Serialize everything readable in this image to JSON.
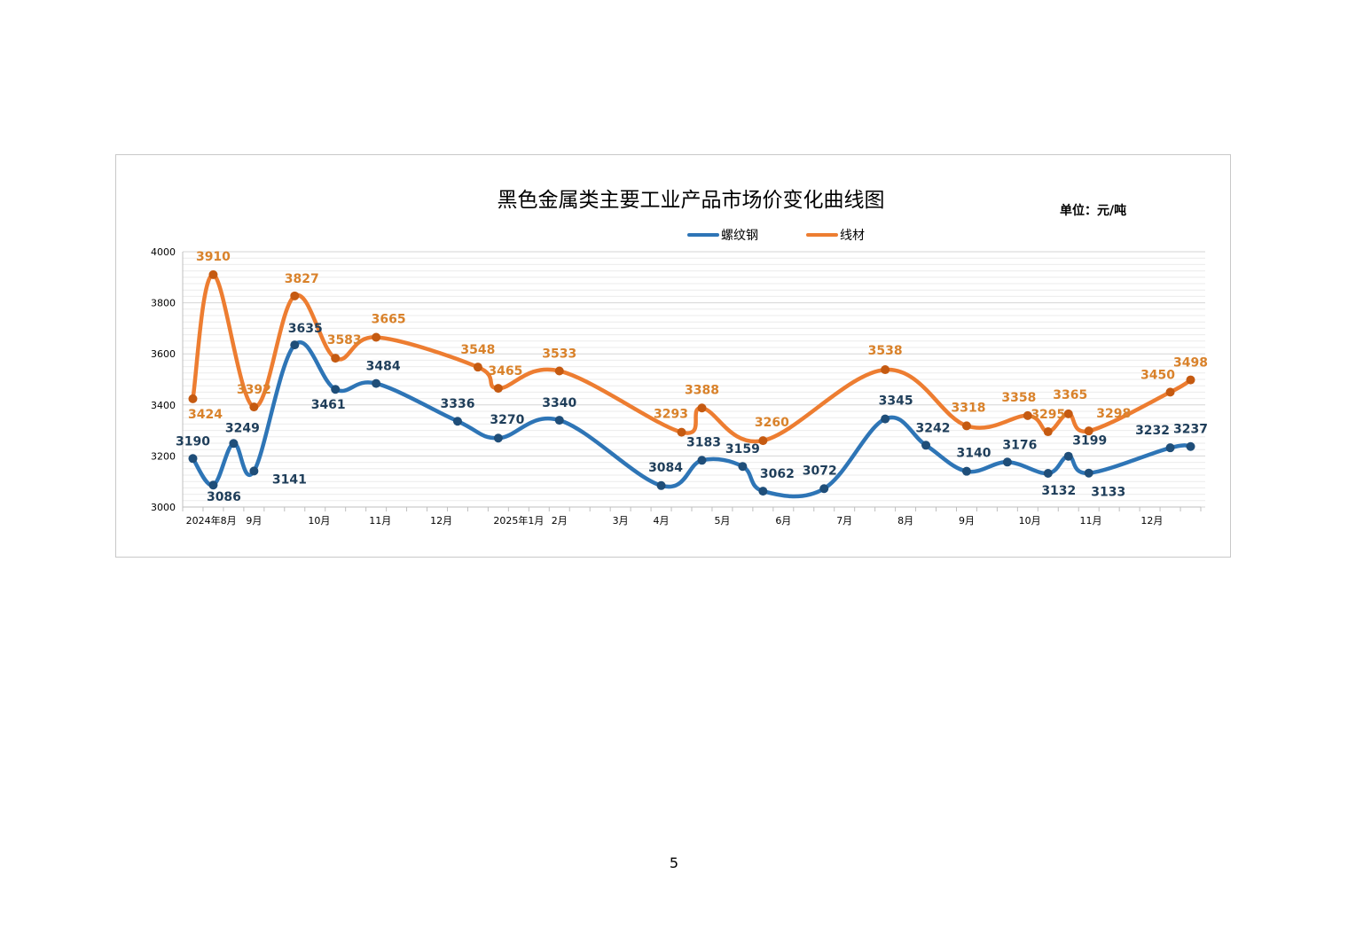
{
  "page_number": "5",
  "chart_data": {
    "type": "line",
    "title": "黑色金属类主要工业产品市场价变化曲线图",
    "unit_note": "单位：元/吨",
    "ylim": [
      3000,
      4000
    ],
    "y_ticks": [
      3000,
      3200,
      3400,
      3600,
      3800,
      4000
    ],
    "y_tick_labels": [
      "3000",
      "3200",
      "3400",
      "3600",
      "3800",
      "4000"
    ],
    "x_tick_labels": [
      "2024年8月",
      "9月",
      "10月",
      "11月",
      "12月",
      "2025年1月",
      "2月",
      "3月",
      "4月",
      "5月",
      "6月",
      "7月",
      "8月",
      "9月",
      "10月",
      "11月",
      "12月"
    ],
    "grid": true,
    "legend_position": "top-center",
    "colors": {
      "rebar": "#2e75b6",
      "rebar_marker": "#1f4e79",
      "rebar_label": "#1f3e5a",
      "wire": "#ed7d31",
      "wire_marker": "#c55a11",
      "wire_label": "#d9822b"
    },
    "series": [
      {
        "name": "螺纹钢",
        "points": [
          {
            "x": 0.5,
            "y": 3190
          },
          {
            "x": 1.5,
            "y": 3086
          },
          {
            "x": 2.5,
            "y": 3249
          },
          {
            "x": 3.5,
            "y": 3141
          },
          {
            "x": 5.5,
            "y": 3635
          },
          {
            "x": 7.5,
            "y": 3461
          },
          {
            "x": 9.5,
            "y": 3484
          },
          {
            "x": 13.5,
            "y": 3336
          },
          {
            "x": 15.5,
            "y": 3270
          },
          {
            "x": 18.5,
            "y": 3340
          },
          {
            "x": 23.5,
            "y": 3084
          },
          {
            "x": 25.5,
            "y": 3183
          },
          {
            "x": 27.5,
            "y": 3159
          },
          {
            "x": 28.5,
            "y": 3062
          },
          {
            "x": 31.5,
            "y": 3072
          },
          {
            "x": 34.5,
            "y": 3345
          },
          {
            "x": 36.5,
            "y": 3242
          },
          {
            "x": 38.5,
            "y": 3140
          },
          {
            "x": 40.5,
            "y": 3176
          },
          {
            "x": 42.5,
            "y": 3132
          },
          {
            "x": 43.5,
            "y": 3199
          },
          {
            "x": 44.5,
            "y": 3133
          },
          {
            "x": 48.5,
            "y": 3232
          },
          {
            "x": 49.5,
            "y": 3237
          }
        ],
        "labels": [
          {
            "x": 0.5,
            "y": 3190,
            "text": "3190"
          },
          {
            "x": 1.5,
            "y": 3086,
            "text": "3086"
          },
          {
            "x": 2.5,
            "y": 3249,
            "text": "3249"
          },
          {
            "x": 3.5,
            "y": 3141,
            "text": "3141"
          },
          {
            "x": 5.5,
            "y": 3635,
            "text": "3635"
          },
          {
            "x": 7.5,
            "y": 3461,
            "text": "3461"
          },
          {
            "x": 9.5,
            "y": 3484,
            "text": "3484"
          },
          {
            "x": 13.5,
            "y": 3336,
            "text": "3336"
          },
          {
            "x": 15.5,
            "y": 3270,
            "text": "3270"
          },
          {
            "x": 18.5,
            "y": 3340,
            "text": "3340"
          },
          {
            "x": 23.5,
            "y": 3084,
            "text": "3084"
          },
          {
            "x": 25.5,
            "y": 3183,
            "text": "3183"
          },
          {
            "x": 27.5,
            "y": 3159,
            "text": "3159"
          },
          {
            "x": 28.5,
            "y": 3062,
            "text": "3062"
          },
          {
            "x": 31.5,
            "y": 3072,
            "text": "3072"
          },
          {
            "x": 34.5,
            "y": 3345,
            "text": "3345"
          },
          {
            "x": 36.5,
            "y": 3242,
            "text": "3242"
          },
          {
            "x": 38.5,
            "y": 3140,
            "text": "3140"
          },
          {
            "x": 40.5,
            "y": 3176,
            "text": "3176"
          },
          {
            "x": 42.5,
            "y": 3132,
            "text": "3132"
          },
          {
            "x": 43.5,
            "y": 3199,
            "text": "3199"
          },
          {
            "x": 44.5,
            "y": 3133,
            "text": "3133"
          },
          {
            "x": 48.5,
            "y": 3232,
            "text": "3232"
          },
          {
            "x": 49.5,
            "y": 3237,
            "text": "3237"
          }
        ]
      },
      {
        "name": "线材",
        "points": [
          {
            "x": 0.5,
            "y": 3424
          },
          {
            "x": 1.5,
            "y": 3910
          },
          {
            "x": 3.5,
            "y": 3392
          },
          {
            "x": 5.5,
            "y": 3827
          },
          {
            "x": 7.5,
            "y": 3583
          },
          {
            "x": 9.5,
            "y": 3665
          },
          {
            "x": 14.5,
            "y": 3548
          },
          {
            "x": 15.5,
            "y": 3465
          },
          {
            "x": 18.5,
            "y": 3533
          },
          {
            "x": 24.5,
            "y": 3293
          },
          {
            "x": 25.5,
            "y": 3388
          },
          {
            "x": 28.5,
            "y": 3260
          },
          {
            "x": 34.5,
            "y": 3538
          },
          {
            "x": 38.5,
            "y": 3318
          },
          {
            "x": 41.5,
            "y": 3358
          },
          {
            "x": 42.5,
            "y": 3295
          },
          {
            "x": 43.5,
            "y": 3365
          },
          {
            "x": 44.5,
            "y": 3298
          },
          {
            "x": 48.5,
            "y": 3450
          },
          {
            "x": 49.5,
            "y": 3498
          }
        ],
        "labels": [
          {
            "x": 0.5,
            "y": 3424,
            "text": "3424"
          },
          {
            "x": 1.5,
            "y": 3910,
            "text": "3910"
          },
          {
            "x": 3.5,
            "y": 3392,
            "text": "3392"
          },
          {
            "x": 5.5,
            "y": 3827,
            "text": "3827"
          },
          {
            "x": 7.5,
            "y": 3583,
            "text": "3583"
          },
          {
            "x": 9.5,
            "y": 3665,
            "text": "3665"
          },
          {
            "x": 14.5,
            "y": 3548,
            "text": "3548"
          },
          {
            "x": 15.5,
            "y": 3465,
            "text": "3465"
          },
          {
            "x": 18.5,
            "y": 3533,
            "text": "3533"
          },
          {
            "x": 24.5,
            "y": 3293,
            "text": "3293"
          },
          {
            "x": 25.5,
            "y": 3388,
            "text": "3388"
          },
          {
            "x": 28.5,
            "y": 3260,
            "text": "3260"
          },
          {
            "x": 34.5,
            "y": 3538,
            "text": "3538"
          },
          {
            "x": 38.5,
            "y": 3318,
            "text": "3318"
          },
          {
            "x": 41.5,
            "y": 3358,
            "text": "3358"
          },
          {
            "x": 42.5,
            "y": 3295,
            "text": "3295"
          },
          {
            "x": 43.5,
            "y": 3365,
            "text": "3365"
          },
          {
            "x": 44.5,
            "y": 3298,
            "text": "3298"
          },
          {
            "x": 48.5,
            "y": 3450,
            "text": "3450"
          },
          {
            "x": 49.5,
            "y": 3498,
            "text": "3498"
          }
        ]
      }
    ]
  }
}
